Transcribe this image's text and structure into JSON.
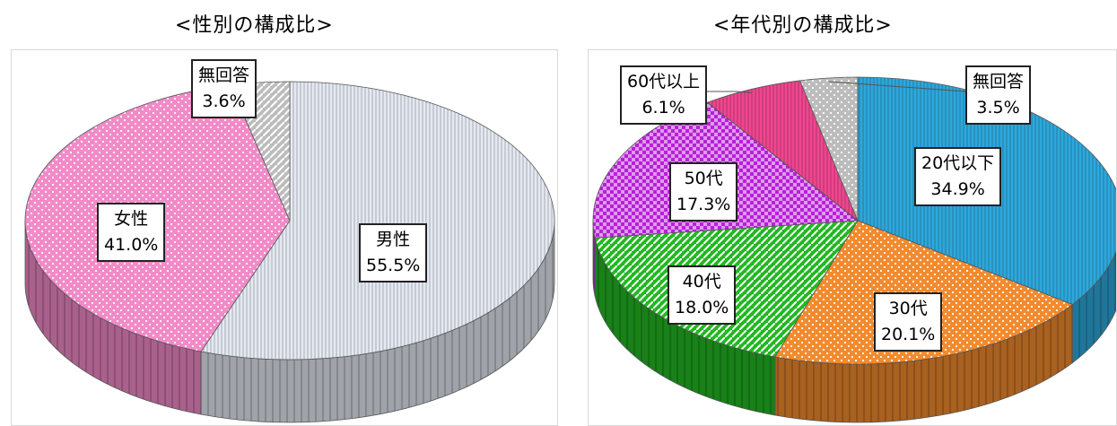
{
  "chart_data": [
    {
      "type": "pie",
      "title": "<性別の構成比>",
      "slices": [
        {
          "label": "男性",
          "value": 55.5,
          "value_label": "55.5%",
          "color": "#e4e9f2"
        },
        {
          "label": "女性",
          "value": 41.0,
          "value_label": "41.0%",
          "color": "#f28ac8"
        },
        {
          "label": "無回答",
          "value": 3.6,
          "value_label": "3.6%",
          "color": "#bcbcbc"
        }
      ]
    },
    {
      "type": "pie",
      "title": "<年代別の構成比>",
      "slices": [
        {
          "label": "20代以下",
          "value": 34.9,
          "value_label": "34.9%",
          "color": "#2ea8dc"
        },
        {
          "label": "30代",
          "value": 20.1,
          "value_label": "20.1%",
          "color": "#f28a2e"
        },
        {
          "label": "40代",
          "value": 18.0,
          "value_label": "18.0%",
          "color": "#22b822"
        },
        {
          "label": "50代",
          "value": 17.3,
          "value_label": "17.3%",
          "color": "#b820d8"
        },
        {
          "label": "60代以上",
          "value": 6.1,
          "value_label": "6.1%",
          "color": "#f04690"
        },
        {
          "label": "無回答",
          "value": 3.5,
          "value_label": "3.5%",
          "color": "#bcbcbc"
        }
      ]
    }
  ]
}
